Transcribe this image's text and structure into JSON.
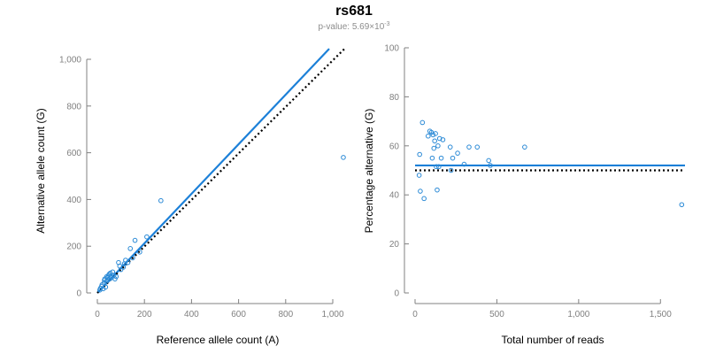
{
  "header": {
    "title": "rs681",
    "pvalue_prefix": "p-value: 5.69×10",
    "pvalue_exp": "-3"
  },
  "colors": {
    "points": "#2b8ad6",
    "fit": "#1c80d8",
    "expected": "#000000",
    "axis": "#808080"
  },
  "chart_data": [
    {
      "type": "scatter",
      "xlabel": "Reference allele count (A)",
      "ylabel": "Alternative allele count (G)",
      "xlim": [
        0,
        1000
      ],
      "ylim": [
        0,
        1000
      ],
      "xticks": [
        0,
        200,
        400,
        600,
        800,
        1000
      ],
      "xtick_labels": [
        "0",
        "200",
        "400",
        "600",
        "800",
        "1,000"
      ],
      "yticks": [
        0,
        200,
        400,
        600,
        800,
        1000
      ],
      "ytick_labels": [
        "0",
        "200",
        "400",
        "600",
        "800",
        "1,000"
      ],
      "points": [
        [
          10,
          12
        ],
        [
          13,
          20
        ],
        [
          18,
          28
        ],
        [
          20,
          35
        ],
        [
          25,
          18
        ],
        [
          28,
          42
        ],
        [
          30,
          55
        ],
        [
          32,
          60
        ],
        [
          35,
          25
        ],
        [
          38,
          50
        ],
        [
          40,
          70
        ],
        [
          42,
          65
        ],
        [
          45,
          55
        ],
        [
          48,
          75
        ],
        [
          50,
          80
        ],
        [
          52,
          60
        ],
        [
          55,
          85
        ],
        [
          58,
          70
        ],
        [
          60,
          65
        ],
        [
          65,
          90
        ],
        [
          70,
          75
        ],
        [
          75,
          60
        ],
        [
          80,
          70
        ],
        [
          90,
          130
        ],
        [
          95,
          115
        ],
        [
          100,
          100
        ],
        [
          110,
          110
        ],
        [
          115,
          125
        ],
        [
          120,
          140
        ],
        [
          130,
          130
        ],
        [
          140,
          190
        ],
        [
          150,
          150
        ],
        [
          160,
          225
        ],
        [
          180,
          175
        ],
        [
          210,
          240
        ],
        [
          270,
          395
        ],
        [
          1045,
          580
        ]
      ],
      "series": [
        {
          "name": "fit",
          "style": "solid",
          "x": [
            0,
            985
          ],
          "y": [
            0,
            1045
          ]
        },
        {
          "name": "expected",
          "style": "dotted",
          "x": [
            0,
            1050
          ],
          "y": [
            0,
            1045
          ]
        }
      ]
    },
    {
      "type": "scatter",
      "xlabel": "Total number of reads",
      "ylabel": "Percentage alternative (G)",
      "xlim": [
        0,
        1650
      ],
      "ylim": [
        0,
        100
      ],
      "xticks": [
        0,
        500,
        1000,
        1500
      ],
      "xtick_labels": [
        "0",
        "500",
        "1,000",
        "1,500"
      ],
      "yticks": [
        0,
        20,
        40,
        60,
        80,
        100
      ],
      "ytick_labels": [
        "0",
        "20",
        "40",
        "60",
        "80",
        "100"
      ],
      "points": [
        [
          25,
          48
        ],
        [
          28,
          56.5
        ],
        [
          32,
          41.5
        ],
        [
          45,
          69.5
        ],
        [
          55,
          38.5
        ],
        [
          80,
          64
        ],
        [
          90,
          66
        ],
        [
          100,
          65.5
        ],
        [
          105,
          55
        ],
        [
          110,
          64.5
        ],
        [
          115,
          59
        ],
        [
          120,
          62
        ],
        [
          125,
          65
        ],
        [
          130,
          51.5
        ],
        [
          135,
          42
        ],
        [
          140,
          60
        ],
        [
          145,
          51.5
        ],
        [
          150,
          63
        ],
        [
          160,
          55
        ],
        [
          170,
          62.5
        ],
        [
          215,
          59.5
        ],
        [
          220,
          50
        ],
        [
          230,
          55
        ],
        [
          260,
          57
        ],
        [
          300,
          52.5
        ],
        [
          330,
          59.5
        ],
        [
          380,
          59.5
        ],
        [
          450,
          54
        ],
        [
          460,
          52
        ],
        [
          670,
          59.5
        ],
        [
          1630,
          36
        ]
      ],
      "series": [
        {
          "name": "fit",
          "style": "solid",
          "x": [
            0,
            1650
          ],
          "y": [
            52,
            52
          ]
        },
        {
          "name": "expected",
          "style": "dotted",
          "x": [
            0,
            1650
          ],
          "y": [
            50,
            50
          ]
        }
      ]
    }
  ]
}
